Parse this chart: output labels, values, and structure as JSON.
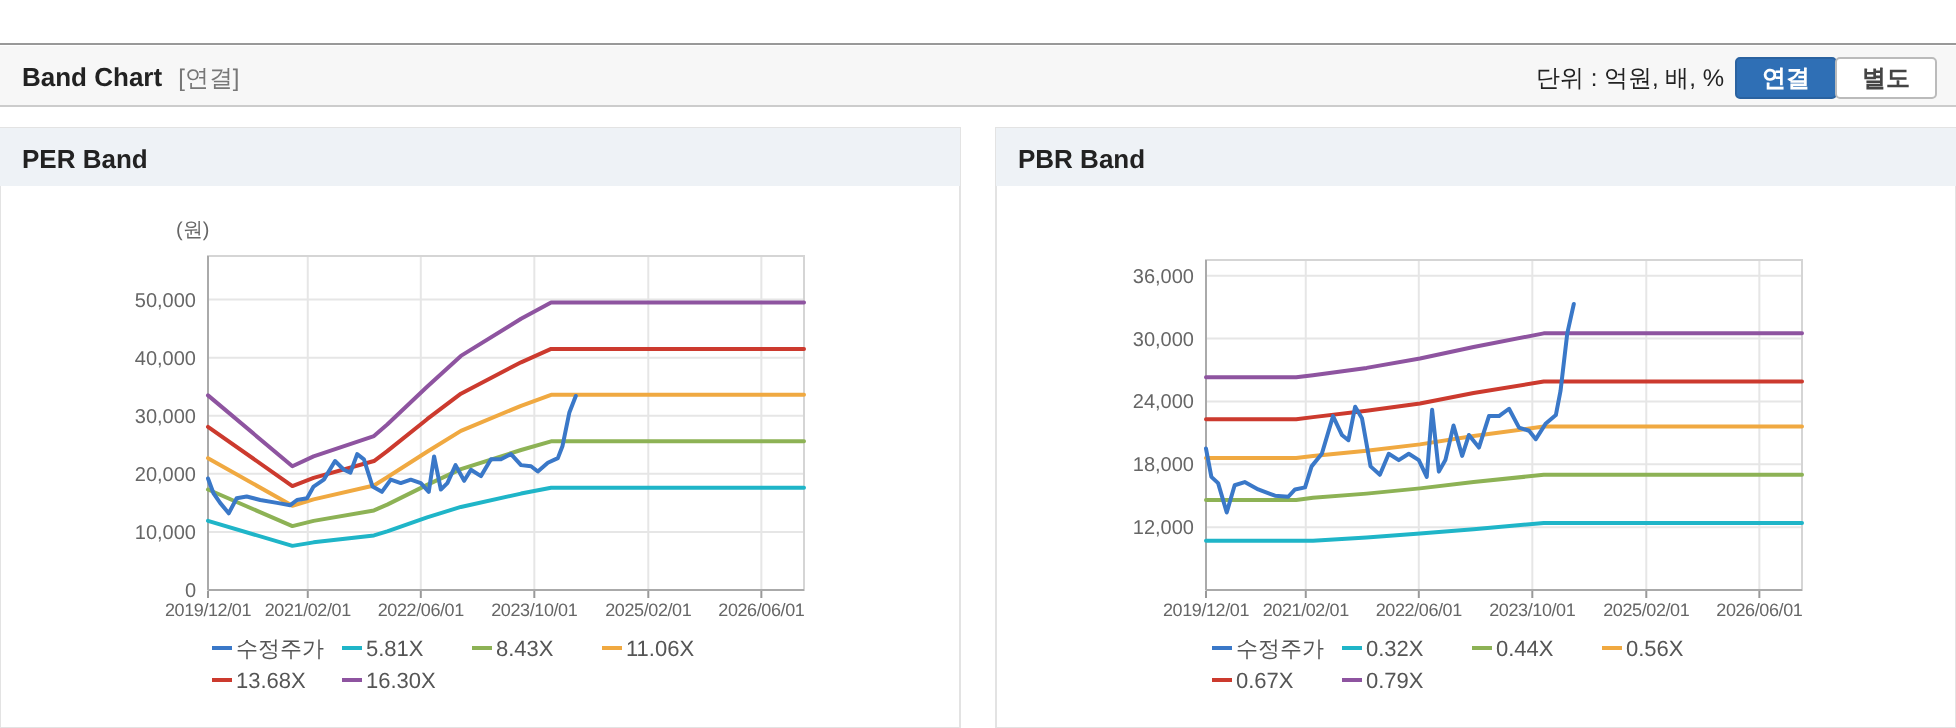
{
  "chart_data": [
    {
      "type": "other",
      "title": "Band Chart",
      "subtitle": "[연결]",
      "annotations": [
        "단위 : 억원, 배, %",
        "연결",
        "별도"
      ]
    },
    {
      "type": "line",
      "title": "PER Band",
      "ylabel": "(원)",
      "xlim": [
        "2019-12-01",
        "2026-12-01"
      ],
      "xticks": [
        {
          "value": "2019-12-01",
          "label": "2019/12/01"
        },
        {
          "value": "2021-02-01",
          "label": "2021/02/01"
        },
        {
          "value": "2022-06-01",
          "label": "2022/06/01"
        },
        {
          "value": "2023-10-01",
          "label": "2023/10/01"
        },
        {
          "value": "2025-02-01",
          "label": "2025/02/01"
        },
        {
          "value": "2026-06-01",
          "label": "2026/06/01"
        }
      ],
      "ylim": [
        0,
        57500
      ],
      "yticks": [
        0,
        {
          "value": 10000,
          "label": "10,000"
        },
        {
          "value": 20000,
          "label": "20,000"
        },
        {
          "value": 30000,
          "label": "30,000"
        },
        {
          "value": 40000,
          "label": "40,000"
        },
        {
          "value": 50000,
          "label": "50,000"
        }
      ],
      "grid": true,
      "legend": "bottom",
      "marker": "none",
      "line_style": "solid",
      "series": [
        {
          "name": "수정주가",
          "color": "#3a78c8",
          "x": [
            "2019-12-01",
            "2019-12-24",
            "2020-01-22",
            "2020-02-28",
            "2020-04-02",
            "2020-05-15",
            "2020-07-12",
            "2020-09-22",
            "2020-11-18",
            "2020-12-17",
            "2021-01-29",
            "2021-02-26",
            "2021-04-11",
            "2021-05-29",
            "2021-07-06",
            "2021-08-03",
            "2021-09-01",
            "2021-09-30",
            "2021-11-06",
            "2021-12-16",
            "2022-01-23",
            "2022-03-07",
            "2022-04-19",
            "2022-06-01",
            "2022-07-05",
            "2022-07-28",
            "2022-08-26",
            "2022-09-23",
            "2022-10-28",
            "2022-12-04",
            "2023-01-02",
            "2023-02-14",
            "2023-03-29",
            "2023-05-11",
            "2023-06-23",
            "2023-08-05",
            "2023-09-17",
            "2023-10-16",
            "2023-11-28",
            "2024-01-10",
            "2024-01-30",
            "2024-02-28",
            "2024-03-27"
          ],
          "values": [
            19200,
            16700,
            15000,
            13200,
            15800,
            16100,
            15500,
            15000,
            14600,
            15500,
            15800,
            17800,
            19000,
            22200,
            20700,
            20200,
            23400,
            22500,
            17800,
            16900,
            19000,
            18400,
            19000,
            18400,
            16900,
            23000,
            17300,
            18400,
            21500,
            18800,
            20700,
            19600,
            22500,
            22500,
            23400,
            21500,
            21300,
            20400,
            21900,
            22700,
            24800,
            30500,
            33400
          ]
        },
        {
          "name": "5.81X",
          "color": "#1fb5c8",
          "x": [
            "2019-12-01",
            "2020-11-27",
            "2021-02-26",
            "2021-11-12",
            "2022-01-08",
            "2022-06-28",
            "2022-11-20",
            "2023-08-05",
            "2023-12-12",
            "2026-12-01"
          ],
          "values": [
            11900,
            7600,
            8200,
            9400,
            10100,
            12500,
            14300,
            16600,
            17600,
            17600
          ]
        },
        {
          "name": "8.43X",
          "color": "#8db255",
          "x": [
            "2019-12-01",
            "2020-11-27",
            "2021-02-26",
            "2021-11-12",
            "2022-01-08",
            "2022-06-28",
            "2022-11-20",
            "2023-08-05",
            "2023-12-12",
            "2026-12-01"
          ],
          "values": [
            17300,
            11000,
            11900,
            13700,
            14700,
            18100,
            20800,
            24100,
            25600,
            25600
          ]
        },
        {
          "name": "11.06X",
          "color": "#f0a941",
          "x": [
            "2019-12-01",
            "2020-11-27",
            "2021-02-26",
            "2021-11-12",
            "2022-01-08",
            "2022-06-28",
            "2022-11-20",
            "2023-08-05",
            "2023-12-12",
            "2026-12-01"
          ],
          "values": [
            22700,
            14500,
            15600,
            18000,
            19400,
            23800,
            27400,
            31700,
            33600,
            33600
          ]
        },
        {
          "name": "13.68X",
          "color": "#cc3a2e",
          "x": [
            "2019-12-01",
            "2020-11-27",
            "2021-02-26",
            "2021-11-12",
            "2022-01-08",
            "2022-06-28",
            "2022-11-20",
            "2023-08-05",
            "2023-12-12",
            "2026-12-01"
          ],
          "values": [
            28100,
            17900,
            19300,
            22200,
            23900,
            29400,
            33800,
            39200,
            41500,
            41500
          ]
        },
        {
          "name": "16.30X",
          "color": "#8e54a0",
          "x": [
            "2019-12-01",
            "2020-11-27",
            "2021-02-26",
            "2021-11-12",
            "2022-01-08",
            "2022-06-28",
            "2022-11-20",
            "2023-08-05",
            "2023-12-12",
            "2026-12-01"
          ],
          "values": [
            33500,
            21300,
            23000,
            26500,
            28500,
            35000,
            40300,
            46700,
            49500,
            49500
          ]
        }
      ]
    },
    {
      "type": "line",
      "title": "PBR Band",
      "xlim": [
        "2019-12-01",
        "2026-12-01"
      ],
      "xticks": [
        {
          "value": "2019-12-01",
          "label": "2019/12/01"
        },
        {
          "value": "2021-02-01",
          "label": "2021/02/01"
        },
        {
          "value": "2022-06-01",
          "label": "2022/06/01"
        },
        {
          "value": "2023-10-01",
          "label": "2023/10/01"
        },
        {
          "value": "2025-02-01",
          "label": "2025/02/01"
        },
        {
          "value": "2026-06-01",
          "label": "2026/06/01"
        }
      ],
      "ylim": [
        6000,
        37500
      ],
      "yticks": [
        {
          "value": 12000,
          "label": "12,000"
        },
        {
          "value": 18000,
          "label": "18,000"
        },
        {
          "value": 24000,
          "label": "24,000"
        },
        {
          "value": 30000,
          "label": "30,000"
        },
        {
          "value": 36000,
          "label": "36,000"
        }
      ],
      "grid": true,
      "legend": "bottom",
      "marker": "none",
      "line_style": "solid",
      "series": [
        {
          "name": "수정주가",
          "color": "#3a78c8",
          "x": [
            "2019-12-01",
            "2019-12-24",
            "2020-01-22",
            "2020-02-28",
            "2020-04-02",
            "2020-05-15",
            "2020-07-12",
            "2020-09-22",
            "2020-11-18",
            "2020-12-17",
            "2021-01-29",
            "2021-02-26",
            "2021-04-11",
            "2021-05-29",
            "2021-07-06",
            "2021-08-03",
            "2021-09-01",
            "2021-09-30",
            "2021-11-06",
            "2021-12-16",
            "2022-01-23",
            "2022-03-07",
            "2022-04-19",
            "2022-06-01",
            "2022-07-05",
            "2022-07-28",
            "2022-08-26",
            "2022-09-23",
            "2022-10-28",
            "2022-12-04",
            "2023-01-02",
            "2023-02-14",
            "2023-03-29",
            "2023-05-11",
            "2023-06-23",
            "2023-08-05",
            "2023-09-17",
            "2023-10-16",
            "2023-11-28",
            "2024-01-10",
            "2024-01-30",
            "2024-02-28",
            "2024-03-27"
          ],
          "values": [
            19500,
            16800,
            16200,
            13400,
            16000,
            16300,
            15600,
            15000,
            14900,
            15600,
            15800,
            17800,
            19000,
            22600,
            20800,
            20300,
            23500,
            22400,
            17800,
            17000,
            19000,
            18400,
            19000,
            18400,
            16800,
            23200,
            17300,
            18400,
            21700,
            18800,
            20800,
            19600,
            22600,
            22600,
            23300,
            21500,
            21200,
            20400,
            21900,
            22700,
            25000,
            30500,
            33300
          ]
        },
        {
          "name": "0.32X",
          "color": "#1fb5c8",
          "x": [
            "2019-12-01",
            "2020-12-22",
            "2021-03-04",
            "2021-10-20",
            "2022-06-06",
            "2023-01-22",
            "2023-11-19",
            "2026-12-01"
          ],
          "values": [
            10700,
            10700,
            10700,
            11000,
            11400,
            11800,
            12400,
            12400
          ]
        },
        {
          "name": "0.44X",
          "color": "#8db255",
          "x": [
            "2019-12-01",
            "2020-12-22",
            "2021-03-04",
            "2021-10-20",
            "2022-06-06",
            "2023-01-22",
            "2023-11-19",
            "2026-12-01"
          ],
          "values": [
            14600,
            14600,
            14800,
            15200,
            15700,
            16300,
            17000,
            17000
          ]
        },
        {
          "name": "0.56X",
          "color": "#f0a941",
          "x": [
            "2019-12-01",
            "2020-12-22",
            "2021-03-04",
            "2021-10-20",
            "2022-06-06",
            "2023-01-22",
            "2023-11-19",
            "2026-12-01"
          ],
          "values": [
            18600,
            18600,
            18800,
            19300,
            19900,
            20700,
            21600,
            21600
          ]
        },
        {
          "name": "0.67X",
          "color": "#cc3a2e",
          "x": [
            "2019-12-01",
            "2020-12-22",
            "2021-03-04",
            "2021-10-20",
            "2022-06-06",
            "2023-01-22",
            "2023-11-19",
            "2026-12-01"
          ],
          "values": [
            22300,
            22300,
            22500,
            23100,
            23800,
            24800,
            25900,
            25900
          ]
        },
        {
          "name": "0.79X",
          "color": "#8e54a0",
          "x": [
            "2019-12-01",
            "2020-12-22",
            "2021-03-04",
            "2021-10-20",
            "2022-06-06",
            "2023-01-22",
            "2023-11-19",
            "2026-12-01"
          ],
          "values": [
            26300,
            26300,
            26500,
            27200,
            28100,
            29200,
            30500,
            30500
          ]
        }
      ]
    }
  ]
}
